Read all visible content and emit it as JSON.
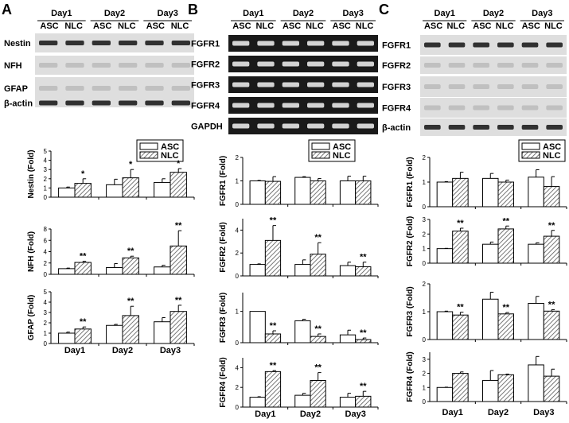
{
  "figure": {
    "panel_letters": [
      "A",
      "B",
      "C"
    ],
    "days": [
      "Day1",
      "Day2",
      "Day3"
    ],
    "groups": [
      "ASC",
      "NLC"
    ],
    "legend": [
      "ASC",
      "NLC"
    ]
  },
  "panels": [
    {
      "letter": "A",
      "blot_labels": [
        "Nestin",
        "NFH",
        "GFAP",
        "β-actin"
      ],
      "blot_type": "western"
    },
    {
      "letter": "B",
      "blot_labels": [
        "FGFR1",
        "FGFR2",
        "FGFR3",
        "FGFR4",
        "GAPDH"
      ],
      "blot_type": "pcr"
    },
    {
      "letter": "C",
      "blot_labels": [
        "FGFR1",
        "FGFR2",
        "FGFR3",
        "FGFR4",
        "β-actin"
      ],
      "blot_type": "western"
    }
  ],
  "chart_data": [
    {
      "type": "bar",
      "panel": "A",
      "ylabel": "Nestin (Fold)",
      "yticks": [
        0,
        1,
        2,
        3,
        4,
        5
      ],
      "ylim": [
        0,
        5
      ],
      "categories": [
        "Day1",
        "Day2",
        "Day3"
      ],
      "series": [
        {
          "name": "ASC",
          "values": [
            1.0,
            1.35,
            1.6
          ],
          "errors": [
            0.1,
            0.6,
            0.4
          ]
        },
        {
          "name": "NLC",
          "values": [
            1.5,
            2.1,
            2.7
          ],
          "errors": [
            0.5,
            0.9,
            0.4
          ]
        }
      ],
      "annotations": [
        {
          "category": "Day1",
          "series": "NLC",
          "text": "*"
        },
        {
          "category": "Day2",
          "series": "NLC",
          "text": "*"
        },
        {
          "category": "Day3",
          "series": "NLC",
          "text": "*"
        }
      ]
    },
    {
      "type": "bar",
      "panel": "A",
      "ylabel": "NFH (Fold)",
      "yticks": [
        0,
        2,
        4,
        6,
        8
      ],
      "ylim": [
        0,
        8
      ],
      "categories": [
        "Day1",
        "Day2",
        "Day3"
      ],
      "series": [
        {
          "name": "ASC",
          "values": [
            1.0,
            1.2,
            1.3
          ],
          "errors": [
            0.1,
            0.7,
            0.3
          ]
        },
        {
          "name": "NLC",
          "values": [
            2.1,
            2.9,
            5.0
          ],
          "errors": [
            0.2,
            0.3,
            2.7
          ]
        }
      ],
      "annotations": [
        {
          "category": "Day1",
          "series": "NLC",
          "text": "**"
        },
        {
          "category": "Day2",
          "series": "NLC",
          "text": "**"
        },
        {
          "category": "Day3",
          "series": "NLC",
          "text": "**"
        }
      ]
    },
    {
      "type": "bar",
      "panel": "A",
      "ylabel": "GFAP (Fold)",
      "yticks": [
        0,
        1,
        2,
        3,
        4,
        5
      ],
      "ylim": [
        0,
        5
      ],
      "categories": [
        "Day1",
        "Day2",
        "Day3"
      ],
      "series": [
        {
          "name": "ASC",
          "values": [
            1.0,
            1.75,
            2.1
          ],
          "errors": [
            0.1,
            0.1,
            0.4
          ]
        },
        {
          "name": "NLC",
          "values": [
            1.4,
            2.7,
            3.1
          ],
          "errors": [
            0.2,
            0.9,
            0.6
          ]
        }
      ],
      "annotations": [
        {
          "category": "Day1",
          "series": "NLC",
          "text": "**"
        },
        {
          "category": "Day2",
          "series": "NLC",
          "text": "**"
        },
        {
          "category": "Day3",
          "series": "NLC",
          "text": "**"
        }
      ]
    },
    {
      "type": "bar",
      "panel": "B",
      "ylabel": "FGFR1 (Fold)",
      "yticks": [
        0,
        1,
        2
      ],
      "ylim": [
        0,
        2
      ],
      "categories": [
        "Day1",
        "Day2",
        "Day3"
      ],
      "series": [
        {
          "name": "ASC",
          "values": [
            1.0,
            1.15,
            1.0
          ],
          "errors": [
            0.02,
            0.03,
            0.2
          ]
        },
        {
          "name": "NLC",
          "values": [
            0.98,
            1.0,
            1.0
          ],
          "errors": [
            0.2,
            0.1,
            0.2
          ]
        }
      ],
      "annotations": []
    },
    {
      "type": "bar",
      "panel": "B",
      "ylabel": "FGFR2 (Fold)",
      "yticks": [
        0,
        2,
        4
      ],
      "ylim": [
        0,
        5
      ],
      "categories": [
        "Day1",
        "Day2",
        "Day3"
      ],
      "series": [
        {
          "name": "ASC",
          "values": [
            1.0,
            1.0,
            0.9
          ],
          "errors": [
            0.05,
            0.4,
            0.3
          ]
        },
        {
          "name": "NLC",
          "values": [
            3.1,
            1.9,
            0.8
          ],
          "errors": [
            1.3,
            1.0,
            0.4
          ]
        }
      ],
      "annotations": [
        {
          "category": "Day1",
          "series": "NLC",
          "text": "**"
        },
        {
          "category": "Day2",
          "series": "NLC",
          "text": "**"
        },
        {
          "category": "Day3",
          "series": "NLC",
          "text": "**"
        }
      ]
    },
    {
      "type": "bar",
      "panel": "B",
      "ylabel": "FGFR3 (Fold)",
      "yticks": [
        0,
        1
      ],
      "ylim": [
        0,
        1.6
      ],
      "categories": [
        "Day1",
        "Day2",
        "Day3"
      ],
      "series": [
        {
          "name": "ASC",
          "values": [
            1.0,
            0.7,
            0.25
          ],
          "errors": [
            0.0,
            0.05,
            0.15
          ]
        },
        {
          "name": "NLC",
          "values": [
            0.28,
            0.2,
            0.1
          ],
          "errors": [
            0.1,
            0.08,
            0.05
          ]
        }
      ],
      "annotations": [
        {
          "category": "Day1",
          "series": "NLC",
          "text": "**"
        },
        {
          "category": "Day2",
          "series": "NLC",
          "text": "**"
        },
        {
          "category": "Day3",
          "series": "NLC",
          "text": "**"
        }
      ]
    },
    {
      "type": "bar",
      "panel": "B",
      "ylabel": "FGFR4 (Fold)",
      "yticks": [
        0,
        2,
        4
      ],
      "ylim": [
        0,
        5
      ],
      "categories": [
        "Day1",
        "Day2",
        "Day3"
      ],
      "series": [
        {
          "name": "ASC",
          "values": [
            1.0,
            1.2,
            1.0
          ],
          "errors": [
            0.05,
            0.2,
            0.4
          ]
        },
        {
          "name": "NLC",
          "values": [
            3.6,
            2.7,
            1.1
          ],
          "errors": [
            0.1,
            0.8,
            0.5
          ]
        }
      ],
      "annotations": [
        {
          "category": "Day1",
          "series": "NLC",
          "text": "**"
        },
        {
          "category": "Day2",
          "series": "NLC",
          "text": "**"
        },
        {
          "category": "Day3",
          "series": "NLC",
          "text": "**"
        }
      ]
    },
    {
      "type": "bar",
      "panel": "C",
      "ylabel": "FGFR1 (Fold)",
      "yticks": [
        0,
        1,
        2
      ],
      "ylim": [
        0,
        2
      ],
      "categories": [
        "Day1",
        "Day2",
        "Day3"
      ],
      "series": [
        {
          "name": "ASC",
          "values": [
            1.0,
            1.15,
            1.2
          ],
          "errors": [
            0.02,
            0.2,
            0.3
          ]
        },
        {
          "name": "NLC",
          "values": [
            1.15,
            1.0,
            0.82
          ],
          "errors": [
            0.25,
            0.08,
            0.4
          ]
        }
      ],
      "annotations": []
    },
    {
      "type": "bar",
      "panel": "C",
      "ylabel": "FGFR2 (Fold)",
      "yticks": [
        0,
        1,
        2,
        3
      ],
      "ylim": [
        0,
        3
      ],
      "categories": [
        "Day1",
        "Day2",
        "Day3"
      ],
      "series": [
        {
          "name": "ASC",
          "values": [
            1.0,
            1.3,
            1.3
          ],
          "errors": [
            0.02,
            0.15,
            0.1
          ]
        },
        {
          "name": "NLC",
          "values": [
            2.2,
            2.35,
            1.85
          ],
          "errors": [
            0.2,
            0.2,
            0.4
          ]
        }
      ],
      "annotations": [
        {
          "category": "Day1",
          "series": "NLC",
          "text": "**"
        },
        {
          "category": "Day2",
          "series": "NLC",
          "text": "**"
        },
        {
          "category": "Day3",
          "series": "NLC",
          "text": "**"
        }
      ]
    },
    {
      "type": "bar",
      "panel": "C",
      "ylabel": "FGFR3 (Fold)",
      "yticks": [
        0,
        1,
        2
      ],
      "ylim": [
        0,
        2
      ],
      "categories": [
        "Day1",
        "Day2",
        "Day3"
      ],
      "series": [
        {
          "name": "ASC",
          "values": [
            1.0,
            1.45,
            1.3
          ],
          "errors": [
            0.02,
            0.25,
            0.25
          ]
        },
        {
          "name": "NLC",
          "values": [
            0.88,
            0.92,
            1.02
          ],
          "errors": [
            0.1,
            0.05,
            0.05
          ]
        }
      ],
      "annotations": [
        {
          "category": "Day1",
          "series": "NLC",
          "text": "**"
        },
        {
          "category": "Day2",
          "series": "NLC",
          "text": "**"
        },
        {
          "category": "Day3",
          "series": "NLC",
          "text": "**"
        }
      ]
    },
    {
      "type": "bar",
      "panel": "C",
      "ylabel": "FGFR4 (Fold)",
      "yticks": [
        0,
        1,
        2,
        3
      ],
      "ylim": [
        0,
        3.5
      ],
      "categories": [
        "Day1",
        "Day2",
        "Day3"
      ],
      "series": [
        {
          "name": "ASC",
          "values": [
            1.0,
            1.5,
            2.6
          ],
          "errors": [
            0.02,
            0.7,
            0.6
          ]
        },
        {
          "name": "NLC",
          "values": [
            2.0,
            1.9,
            1.8
          ],
          "errors": [
            0.1,
            0.05,
            0.5
          ]
        }
      ],
      "annotations": []
    }
  ]
}
